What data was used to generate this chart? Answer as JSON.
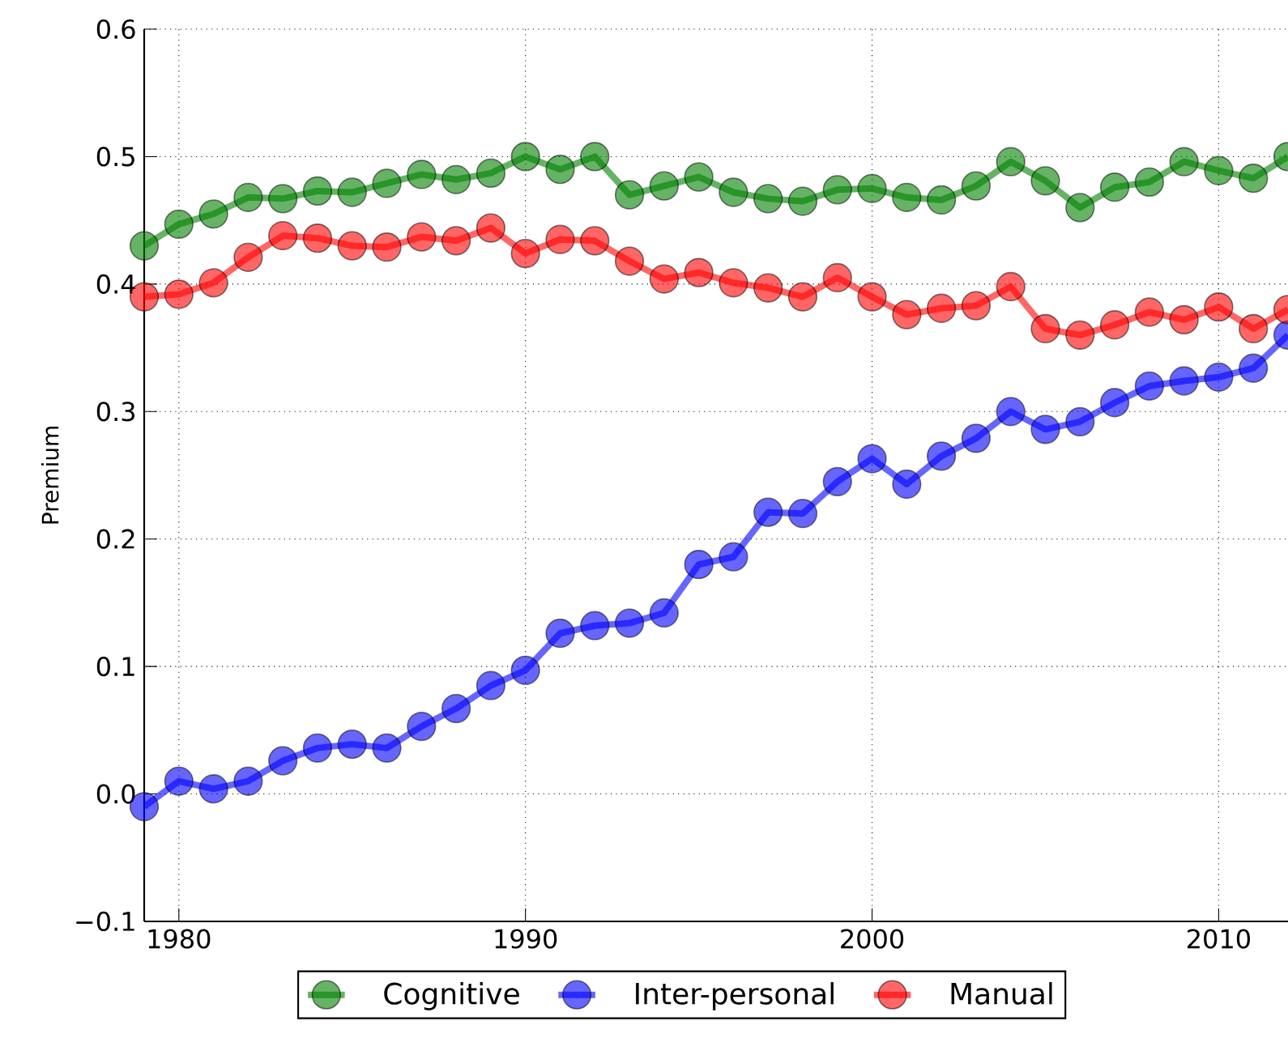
{
  "chart_data": {
    "type": "line",
    "ylabel": "Premium",
    "x": [
      1979,
      1980,
      1981,
      1982,
      1983,
      1984,
      1985,
      1986,
      1987,
      1988,
      1989,
      1990,
      1991,
      1992,
      1993,
      1994,
      1995,
      1996,
      1997,
      1998,
      1999,
      2000,
      2001,
      2002,
      2003,
      2004,
      2005,
      2006,
      2007,
      2008,
      2009,
      2010,
      2011,
      2012
    ],
    "series": [
      {
        "name": "Cognitive",
        "color": "#008000",
        "values": [
          0.43,
          0.447,
          0.455,
          0.468,
          0.467,
          0.473,
          0.472,
          0.479,
          0.486,
          0.482,
          0.487,
          0.5,
          0.49,
          0.5,
          0.47,
          0.477,
          0.484,
          0.472,
          0.467,
          0.465,
          0.474,
          0.475,
          0.468,
          0.466,
          0.477,
          0.496,
          0.481,
          0.46,
          0.476,
          0.48,
          0.496,
          0.489,
          0.483,
          0.5
        ]
      },
      {
        "name": "Inter-personal",
        "color": "#0000ff",
        "values": [
          -0.01,
          0.01,
          0.004,
          0.01,
          0.026,
          0.036,
          0.039,
          0.036,
          0.053,
          0.067,
          0.085,
          0.097,
          0.126,
          0.132,
          0.134,
          0.142,
          0.18,
          0.186,
          0.221,
          0.22,
          0.245,
          0.263,
          0.243,
          0.265,
          0.279,
          0.3,
          0.286,
          0.292,
          0.307,
          0.32,
          0.324,
          0.327,
          0.334,
          0.36
        ]
      },
      {
        "name": "Manual",
        "color": "#ff0000",
        "values": [
          0.39,
          0.392,
          0.401,
          0.421,
          0.438,
          0.436,
          0.43,
          0.429,
          0.437,
          0.434,
          0.444,
          0.424,
          0.435,
          0.434,
          0.418,
          0.404,
          0.409,
          0.401,
          0.397,
          0.39,
          0.405,
          0.39,
          0.376,
          0.381,
          0.383,
          0.398,
          0.365,
          0.36,
          0.368,
          0.378,
          0.372,
          0.382,
          0.365,
          0.38
        ]
      }
    ],
    "xlim": [
      1979,
      2012
    ],
    "ylim": [
      -0.1,
      0.6
    ],
    "xticks": [
      1980,
      1990,
      2000,
      2010
    ],
    "yticks": [
      {
        "value": -0.1,
        "label": "−0.1"
      },
      {
        "value": 0.0,
        "label": "0.0"
      },
      0.1,
      0.2,
      0.3,
      0.4,
      0.5,
      0.6
    ],
    "grid": true,
    "legend": "bottom",
    "marker": "circle",
    "line_style": "solid"
  }
}
